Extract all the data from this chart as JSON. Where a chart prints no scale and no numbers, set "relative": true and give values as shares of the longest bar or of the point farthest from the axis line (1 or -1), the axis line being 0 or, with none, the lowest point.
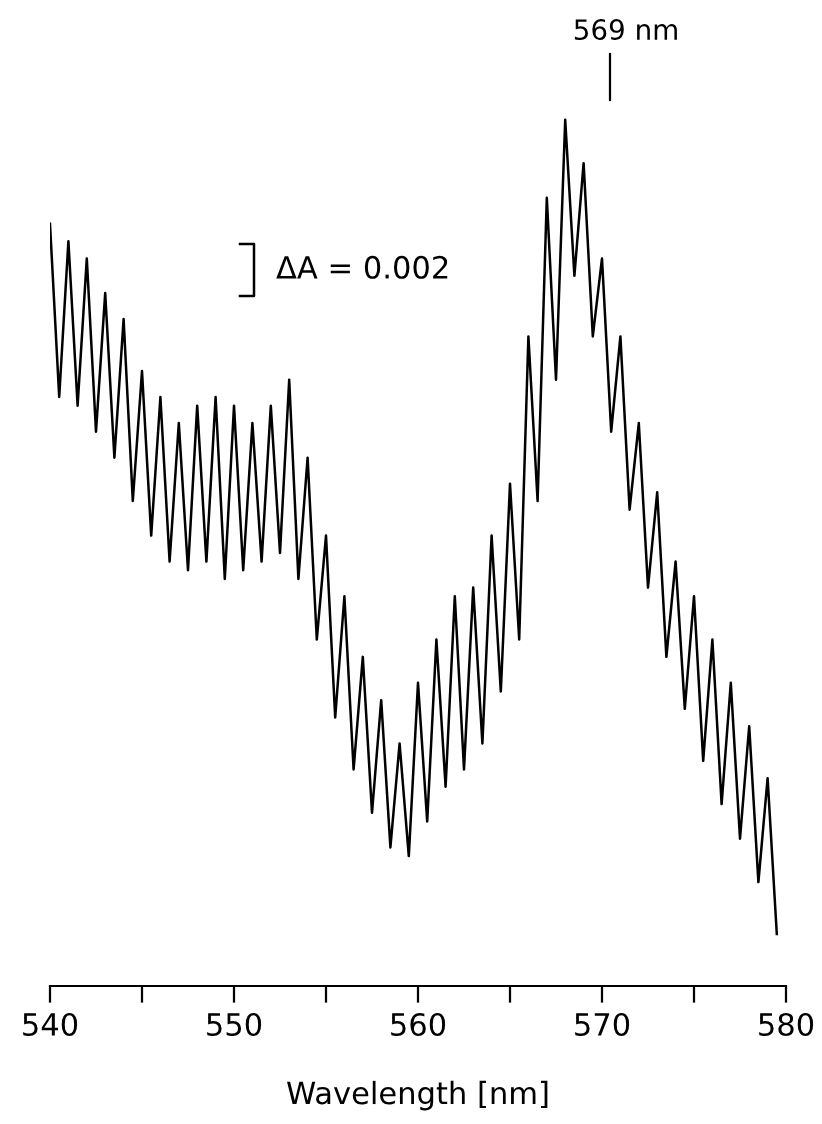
{
  "chart_data": {
    "type": "line",
    "relative": true,
    "xlabel": "Wavelength [nm]",
    "color": "#000000",
    "x": [
      540,
      540.5,
      541,
      541.5,
      542,
      542.5,
      543,
      543.5,
      544,
      544.5,
      545,
      545.5,
      546,
      546.5,
      547,
      547.5,
      548,
      548.5,
      549,
      549.5,
      550,
      550.5,
      551,
      551.5,
      552,
      552.5,
      553,
      553.5,
      554,
      554.5,
      555,
      555.5,
      556,
      556.5,
      557,
      557.5,
      558,
      558.5,
      559,
      559.5,
      560,
      560.5,
      561,
      561.5,
      562,
      562.5,
      563,
      563.5,
      564,
      564.5,
      565,
      565.5,
      566,
      566.5,
      567,
      567.5,
      568,
      568.5,
      569,
      569.5,
      570,
      570.5,
      571,
      571.5,
      572,
      572.5,
      573,
      573.5,
      574,
      574.5,
      575,
      575.5,
      576,
      576.5,
      577,
      577.5,
      578,
      578.5,
      579,
      579.5
    ],
    "values": [
      0.88,
      0.68,
      0.86,
      0.67,
      0.84,
      0.64,
      0.8,
      0.61,
      0.77,
      0.56,
      0.71,
      0.52,
      0.68,
      0.49,
      0.65,
      0.48,
      0.67,
      0.49,
      0.68,
      0.47,
      0.67,
      0.48,
      0.65,
      0.49,
      0.67,
      0.5,
      0.7,
      0.47,
      0.61,
      0.4,
      0.52,
      0.31,
      0.45,
      0.25,
      0.38,
      0.2,
      0.33,
      0.16,
      0.28,
      0.15,
      0.35,
      0.19,
      0.4,
      0.23,
      0.45,
      0.25,
      0.46,
      0.28,
      0.52,
      0.34,
      0.58,
      0.4,
      0.75,
      0.56,
      0.91,
      0.7,
      1.0,
      0.82,
      0.95,
      0.75,
      0.84,
      0.64,
      0.75,
      0.55,
      0.65,
      0.46,
      0.57,
      0.38,
      0.49,
      0.32,
      0.45,
      0.26,
      0.4,
      0.21,
      0.35,
      0.17,
      0.3,
      0.12,
      0.24,
      0.06
    ],
    "xlim": [
      540,
      580
    ],
    "xticks": [
      540,
      {
        "value": 545,
        "label": null
      },
      550,
      {
        "value": 555,
        "label": null
      },
      560,
      {
        "value": 565,
        "label": null
      },
      570,
      {
        "value": 575,
        "label": null
      },
      580
    ],
    "annotations": [
      "569 nm",
      "ΔA = 0.002"
    ],
    "grid": false,
    "legend": false,
    "marker": "none",
    "line_style": "solid"
  }
}
